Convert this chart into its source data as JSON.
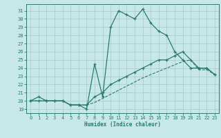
{
  "xlabel": "Humidex (Indice chaleur)",
  "bg_color": "#c8e8e8",
  "line_color": "#2a7a6a",
  "grid_color": "#a8cccc",
  "xlim": [
    -0.5,
    23.5
  ],
  "ylim": [
    18.5,
    31.8
  ],
  "xticks": [
    0,
    1,
    2,
    3,
    4,
    5,
    6,
    7,
    8,
    9,
    10,
    11,
    12,
    13,
    14,
    15,
    16,
    17,
    18,
    19,
    20,
    21,
    22,
    23
  ],
  "yticks": [
    19,
    20,
    21,
    22,
    23,
    24,
    25,
    26,
    27,
    28,
    29,
    30,
    31
  ],
  "x": [
    0,
    1,
    2,
    3,
    4,
    5,
    6,
    7,
    8,
    9,
    10,
    11,
    12,
    13,
    14,
    15,
    16,
    17,
    18,
    19,
    20,
    21,
    22,
    23
  ],
  "line1": [
    20,
    20.5,
    20,
    20,
    20,
    19.5,
    19.5,
    19,
    24.5,
    20.5,
    29,
    31,
    30.5,
    30,
    31.2,
    29.5,
    28.5,
    28,
    26,
    25,
    24,
    24,
    24,
    23.2
  ],
  "line2": [
    20,
    20,
    20,
    20,
    20,
    19.5,
    19.5,
    19.5,
    20.5,
    21,
    22,
    22.5,
    23,
    23.5,
    24,
    24.5,
    25,
    25,
    25.5,
    26,
    25,
    24,
    24,
    23.2
  ],
  "line3": [
    20,
    20,
    20,
    20,
    20,
    19.5,
    19.5,
    19.5,
    19.8,
    20.3,
    20.8,
    21.3,
    21.8,
    22.3,
    22.8,
    23.2,
    23.6,
    24.0,
    24.4,
    24.8,
    25.0,
    23.8,
    23.8,
    23.2
  ]
}
